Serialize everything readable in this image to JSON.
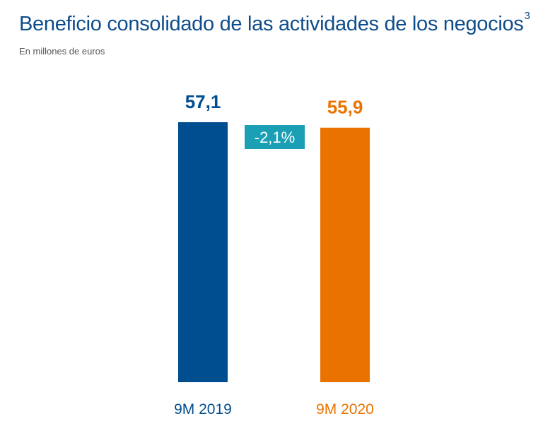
{
  "chart_data": {
    "type": "bar",
    "title": "Beneficio consolidado de las actividades de los negocios",
    "title_superscript": "3",
    "subtitle": "En millones de euros",
    "categories": [
      "9M 2019",
      "9M 2020"
    ],
    "values": [
      57.1,
      55.9
    ],
    "value_labels": [
      "57,1",
      "55,9"
    ],
    "bar_colors": [
      "#004d8f",
      "#ea7300"
    ],
    "change_label": "-2,1%",
    "change_color": "#1a9fb4",
    "ylim": [
      0,
      57.1
    ],
    "grid": false,
    "legend": "none",
    "xlabel": "",
    "ylabel": ""
  }
}
